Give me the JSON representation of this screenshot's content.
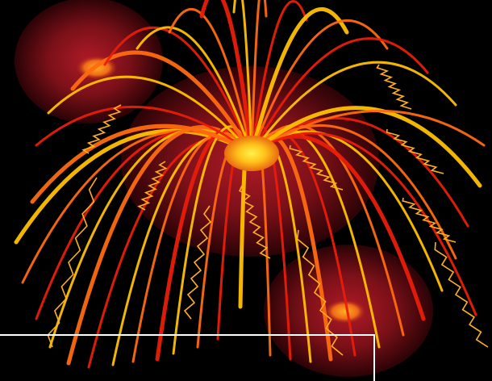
{
  "artwork": {
    "subject": "firework-burst",
    "colors": {
      "background": "#000000",
      "orb_dark": "#3a0508",
      "orb_mid": "#8e1620",
      "orb_hot": "#ff9a1a",
      "core_yellow": "#ffe21a",
      "streak_red": "#e8200a",
      "streak_orange": "#ff7a10",
      "streak_yellow": "#ffc800",
      "frame_line": "#ffffff"
    }
  }
}
